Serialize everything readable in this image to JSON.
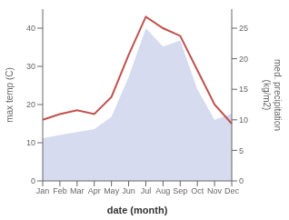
{
  "chart_data": {
    "type": "line",
    "categories": [
      "Jan",
      "Feb",
      "Mar",
      "Apr",
      "May",
      "Jun",
      "Jul",
      "Aug",
      "Sep",
      "Oct",
      "Nov",
      "Dec"
    ],
    "xlabel": "date (month)",
    "ylabel": "max temp (C)",
    "y2label": "med. precipitation\n(kg/m2)",
    "ylim": [
      0,
      45
    ],
    "yticks": [
      0,
      10,
      20,
      30,
      40
    ],
    "y2lim": [
      0,
      28.125
    ],
    "y2ticks": [
      0,
      5,
      10,
      15,
      20,
      25
    ],
    "grid": false,
    "series": [
      {
        "type": "area",
        "color": "#c5cce8",
        "axis": "y2",
        "values": [
          7,
          7.5,
          8,
          8.5,
          10.5,
          17,
          25,
          22,
          23,
          15,
          10,
          11
        ]
      },
      {
        "type": "line",
        "color": "#c0504d",
        "values": [
          16,
          17.5,
          18.5,
          17.5,
          22,
          33,
          43,
          40,
          38,
          29,
          20,
          15
        ]
      }
    ]
  }
}
